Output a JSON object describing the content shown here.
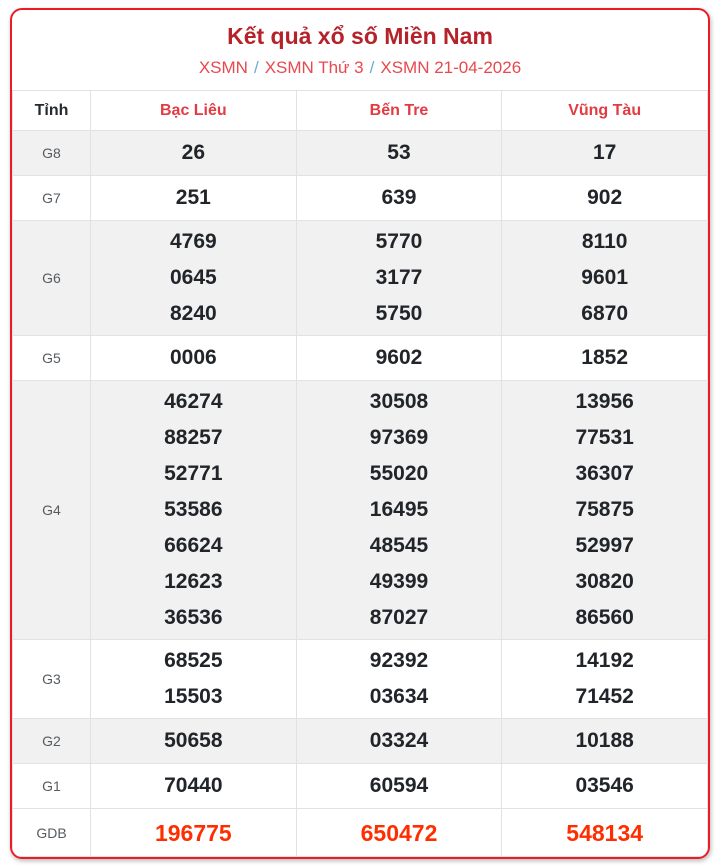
{
  "colors": {
    "card_border": "#ed1c24",
    "title": "#b5232a",
    "breadcrumb_link": "#e8484e",
    "breadcrumb_separator": "#6ca9dc",
    "province_header": "#e23b41",
    "corner_header": "#232a31",
    "row_label": "#565b61",
    "number": "#212529",
    "jackpot_number": "#ff2e00",
    "stripe_background": "#f1f1f1",
    "cell_border": "#e2e2e2"
  },
  "header": {
    "title": "Kết quả xổ số Miền Nam",
    "separator": "/",
    "breadcrumb": [
      {
        "label": "XSMN"
      },
      {
        "label": "XSMN Thứ 3"
      },
      {
        "label": "XSMN 21-04-2026"
      }
    ]
  },
  "table": {
    "province_column_header": "Tỉnh",
    "provinces": [
      "Bạc Liêu",
      "Bến Tre",
      "Vũng Tàu"
    ],
    "rows": [
      {
        "label": "G8",
        "striped": true,
        "highlight": false,
        "cells": [
          [
            "26"
          ],
          [
            "53"
          ],
          [
            "17"
          ]
        ]
      },
      {
        "label": "G7",
        "striped": false,
        "highlight": false,
        "cells": [
          [
            "251"
          ],
          [
            "639"
          ],
          [
            "902"
          ]
        ]
      },
      {
        "label": "G6",
        "striped": true,
        "highlight": false,
        "cells": [
          [
            "4769",
            "0645",
            "8240"
          ],
          [
            "5770",
            "3177",
            "5750"
          ],
          [
            "8110",
            "9601",
            "6870"
          ]
        ]
      },
      {
        "label": "G5",
        "striped": false,
        "highlight": false,
        "cells": [
          [
            "0006"
          ],
          [
            "9602"
          ],
          [
            "1852"
          ]
        ]
      },
      {
        "label": "G4",
        "striped": true,
        "highlight": false,
        "cells": [
          [
            "46274",
            "88257",
            "52771",
            "53586",
            "66624",
            "12623",
            "36536"
          ],
          [
            "30508",
            "97369",
            "55020",
            "16495",
            "48545",
            "49399",
            "87027"
          ],
          [
            "13956",
            "77531",
            "36307",
            "75875",
            "52997",
            "30820",
            "86560"
          ]
        ]
      },
      {
        "label": "G3",
        "striped": false,
        "highlight": false,
        "cells": [
          [
            "68525",
            "15503"
          ],
          [
            "92392",
            "03634"
          ],
          [
            "14192",
            "71452"
          ]
        ]
      },
      {
        "label": "G2",
        "striped": true,
        "highlight": false,
        "cells": [
          [
            "50658"
          ],
          [
            "03324"
          ],
          [
            "10188"
          ]
        ]
      },
      {
        "label": "G1",
        "striped": false,
        "highlight": false,
        "cells": [
          [
            "70440"
          ],
          [
            "60594"
          ],
          [
            "03546"
          ]
        ]
      },
      {
        "label": "GDB",
        "striped": false,
        "highlight": true,
        "cells": [
          [
            "196775"
          ],
          [
            "650472"
          ],
          [
            "548134"
          ]
        ]
      }
    ]
  }
}
